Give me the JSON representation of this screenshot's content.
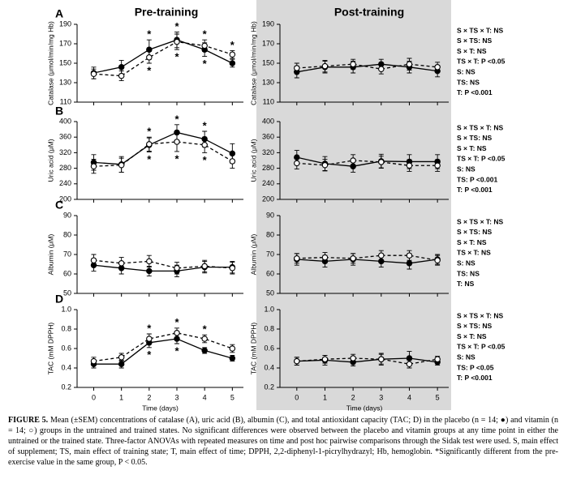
{
  "column_titles": [
    "Pre-training",
    "Post-training"
  ],
  "caption_label": "FIGURE 5.",
  "caption": "Mean (±SEM) concentrations of catalase (A), uric acid (B), albumin (C), and total antioxidant capacity (TAC; D) in the placebo (n = 14; ●) and vitamin (n = 14; ○) groups in the untrained and trained states. No significant differences were observed between the placebo and vitamin groups at any time point in either the untrained or the trained state. Three-factor ANOVAs with repeated measures on time and post hoc pairwise comparisons through the Sidak test were used. S, main effect of supplement; TS, main effect of training state; T, main effect of time; DPPH, 2,2-diphenyl-1-picrylhydrazyl; Hb, hemoglobin. *Significantly different from the pre-exercise value in the same group, P < 0.05.",
  "chart_data": [
    {
      "type": "line",
      "panel": "A",
      "ylabel": "Catalase (μmol/min/mg Hb)",
      "x": [
        0,
        1,
        2,
        3,
        4,
        5
      ],
      "xlim": [
        -0.6,
        5.4
      ],
      "xticks": [
        0,
        1,
        2,
        3,
        4,
        5
      ],
      "ylim": [
        110,
        190
      ],
      "yticks": [
        110,
        130,
        150,
        170,
        190
      ],
      "series": [
        {
          "color": "#000000",
          "marker_fill": "#000000",
          "dashed": false,
          "values": [
            140,
            146,
            164,
            174,
            164,
            150
          ],
          "errors": [
            6,
            7,
            10,
            8,
            7,
            4
          ],
          "sig": [
            null,
            null,
            "*",
            "*",
            "*",
            null
          ]
        },
        {
          "color": "#000000",
          "marker_fill": "#ffffff",
          "dashed": true,
          "values": [
            139,
            137,
            156,
            172,
            168,
            159
          ],
          "errors": [
            5,
            5,
            6,
            8,
            6,
            4
          ],
          "sig": [
            null,
            null,
            "*",
            "*",
            "*",
            "*"
          ]
        }
      ]
    },
    {
      "type": "line",
      "ylabel": "Catalase (μmol/min/mg Hb)",
      "x": [
        0,
        1,
        2,
        3,
        4,
        5
      ],
      "xlim": [
        -0.6,
        5.4
      ],
      "xticks": [
        0,
        1,
        2,
        3,
        4,
        5
      ],
      "ylim": [
        110,
        190
      ],
      "yticks": [
        110,
        130,
        150,
        170,
        190
      ],
      "stats": [
        "S × TS × T: NS",
        "S × TS: NS",
        "S × T: NS",
        "TS × T: P <0.05",
        "S: NS",
        "TS: NS",
        "T: P <0.001"
      ],
      "series": [
        {
          "color": "#000000",
          "marker_fill": "#000000",
          "dashed": false,
          "values": [
            141,
            146,
            146,
            149,
            146,
            142
          ],
          "errors": [
            6,
            6,
            6,
            5,
            6,
            6
          ]
        },
        {
          "color": "#000000",
          "marker_fill": "#ffffff",
          "dashed": true,
          "values": [
            145,
            147,
            149,
            144,
            149,
            146
          ],
          "errors": [
            5,
            6,
            5,
            5,
            6,
            5
          ]
        }
      ]
    },
    {
      "type": "line",
      "panel": "B",
      "ylabel": "Uric acid (μM)",
      "x": [
        0,
        1,
        2,
        3,
        4,
        5
      ],
      "xlim": [
        -0.6,
        5.4
      ],
      "xticks": [
        0,
        1,
        2,
        3,
        4,
        5
      ],
      "ylim": [
        200,
        400
      ],
      "yticks": [
        200,
        240,
        280,
        320,
        360,
        400
      ],
      "series": [
        {
          "color": "#000000",
          "marker_fill": "#000000",
          "dashed": false,
          "values": [
            295,
            290,
            340,
            372,
            355,
            318
          ],
          "errors": [
            20,
            20,
            18,
            20,
            20,
            25
          ],
          "sig": [
            null,
            null,
            "*",
            "*",
            "*",
            null
          ]
        },
        {
          "color": "#000000",
          "marker_fill": "#ffffff",
          "dashed": true,
          "values": [
            285,
            288,
            342,
            348,
            340,
            298
          ],
          "errors": [
            18,
            18,
            18,
            25,
            20,
            18
          ],
          "sig": [
            null,
            null,
            "*",
            "*",
            "*",
            null
          ]
        }
      ]
    },
    {
      "type": "line",
      "ylabel": "Uric acid (μM)",
      "x": [
        0,
        1,
        2,
        3,
        4,
        5
      ],
      "xlim": [
        -0.6,
        5.4
      ],
      "xticks": [
        0,
        1,
        2,
        3,
        4,
        5
      ],
      "ylim": [
        200,
        400
      ],
      "yticks": [
        200,
        240,
        280,
        320,
        360,
        400
      ],
      "stats": [
        "S × TS × T: NS",
        "S × TS: NS",
        "S × T: NS",
        "TS × T: P <0.05",
        "S: NS",
        "TS: P <0.001",
        "T: P <0.001"
      ],
      "series": [
        {
          "color": "#000000",
          "marker_fill": "#000000",
          "dashed": false,
          "values": [
            308,
            292,
            285,
            298,
            297,
            297
          ],
          "errors": [
            18,
            18,
            15,
            18,
            18,
            18
          ]
        },
        {
          "color": "#000000",
          "marker_fill": "#ffffff",
          "dashed": true,
          "values": [
            293,
            288,
            300,
            296,
            287,
            287
          ],
          "errors": [
            15,
            15,
            15,
            15,
            15,
            15
          ]
        }
      ]
    },
    {
      "type": "line",
      "panel": "C",
      "ylabel": "Albumin (μM)",
      "x": [
        0,
        1,
        2,
        3,
        4,
        5
      ],
      "xlim": [
        -0.6,
        5.4
      ],
      "xticks": [
        0,
        1,
        2,
        3,
        4,
        5
      ],
      "ylim": [
        50,
        90
      ],
      "yticks": [
        50,
        60,
        70,
        80,
        90
      ],
      "series": [
        {
          "color": "#000000",
          "marker_fill": "#000000",
          "dashed": false,
          "values": [
            64.5,
            63,
            61.5,
            61.5,
            63.5,
            63.5
          ],
          "errors": [
            3,
            3,
            2.5,
            3,
            3,
            3
          ]
        },
        {
          "color": "#000000",
          "marker_fill": "#ffffff",
          "dashed": true,
          "values": [
            67,
            65.5,
            66.5,
            63,
            64,
            63
          ],
          "errors": [
            3,
            3,
            3,
            3,
            3,
            3
          ]
        }
      ]
    },
    {
      "type": "line",
      "ylabel": "Albumin (μM)",
      "x": [
        0,
        1,
        2,
        3,
        4,
        5
      ],
      "xlim": [
        -0.6,
        5.4
      ],
      "xticks": [
        0,
        1,
        2,
        3,
        4,
        5
      ],
      "ylim": [
        50,
        90
      ],
      "yticks": [
        50,
        60,
        70,
        80,
        90
      ],
      "stats": [
        "S × TS × T: NS",
        "S × TS: NS",
        "S × T: NS",
        "TS × T: NS",
        "S: NS",
        "TS: NS",
        "T: NS"
      ],
      "series": [
        {
          "color": "#000000",
          "marker_fill": "#000000",
          "dashed": false,
          "values": [
            67.5,
            66.5,
            67.5,
            66.5,
            65.5,
            67.5
          ],
          "errors": [
            3,
            3,
            3,
            3,
            3,
            2.5
          ]
        },
        {
          "color": "#000000",
          "marker_fill": "#ffffff",
          "dashed": true,
          "values": [
            68,
            68.5,
            68,
            69.5,
            69.5,
            67
          ],
          "errors": [
            2.5,
            2.5,
            2.5,
            2.5,
            2.5,
            2.5
          ]
        }
      ]
    },
    {
      "type": "line",
      "panel": "D",
      "ylabel": "TAC (mM DPPH)",
      "xlabel": "Time (days)",
      "x": [
        0,
        1,
        2,
        3,
        4,
        5
      ],
      "xlim": [
        -0.6,
        5.4
      ],
      "xticks": [
        0,
        1,
        2,
        3,
        4,
        5
      ],
      "ylim": [
        0.2,
        1
      ],
      "yticks": [
        0.2,
        0.4,
        0.6,
        0.8,
        {
          "value": 1,
          "label": "1.0"
        }
      ],
      "series": [
        {
          "color": "#000000",
          "marker_fill": "#000000",
          "dashed": false,
          "values": [
            0.44,
            0.44,
            0.66,
            0.7,
            0.58,
            0.5
          ],
          "errors": [
            0.04,
            0.04,
            0.05,
            0.05,
            0.03,
            0.03
          ],
          "sig": [
            null,
            null,
            "*",
            "*",
            null,
            null
          ]
        },
        {
          "color": "#000000",
          "marker_fill": "#ffffff",
          "dashed": true,
          "values": [
            0.47,
            0.51,
            0.7,
            0.76,
            0.7,
            0.6
          ],
          "errors": [
            0.04,
            0.04,
            0.05,
            0.05,
            0.04,
            0.04
          ],
          "sig": [
            null,
            null,
            "*",
            "*",
            "*",
            null
          ]
        }
      ]
    },
    {
      "type": "line",
      "ylabel": "TAC (mM DPPH)",
      "xlabel": "Time (days)",
      "x": [
        0,
        1,
        2,
        3,
        4,
        5
      ],
      "xlim": [
        -0.6,
        5.4
      ],
      "xticks": [
        0,
        1,
        2,
        3,
        4,
        5
      ],
      "ylim": [
        0.2,
        1
      ],
      "yticks": [
        0.2,
        0.4,
        0.6,
        0.8,
        {
          "value": 1,
          "label": "1.0"
        }
      ],
      "stats": [
        "S × TS × T: NS",
        "S × TS: NS",
        "S × T: NS",
        "TS × T: P <0.05",
        "S: NS",
        "TS: P <0.05",
        "T: P <0.001"
      ],
      "series": [
        {
          "color": "#000000",
          "marker_fill": "#000000",
          "dashed": false,
          "values": [
            0.47,
            0.48,
            0.46,
            0.49,
            0.5,
            0.46
          ],
          "errors": [
            0.04,
            0.05,
            0.04,
            0.06,
            0.07,
            0.03
          ]
        },
        {
          "color": "#000000",
          "marker_fill": "#ffffff",
          "dashed": true,
          "values": [
            0.47,
            0.49,
            0.5,
            0.49,
            0.44,
            0.49
          ],
          "errors": [
            0.04,
            0.04,
            0.04,
            0.05,
            0.04,
            0.03
          ]
        }
      ]
    }
  ]
}
